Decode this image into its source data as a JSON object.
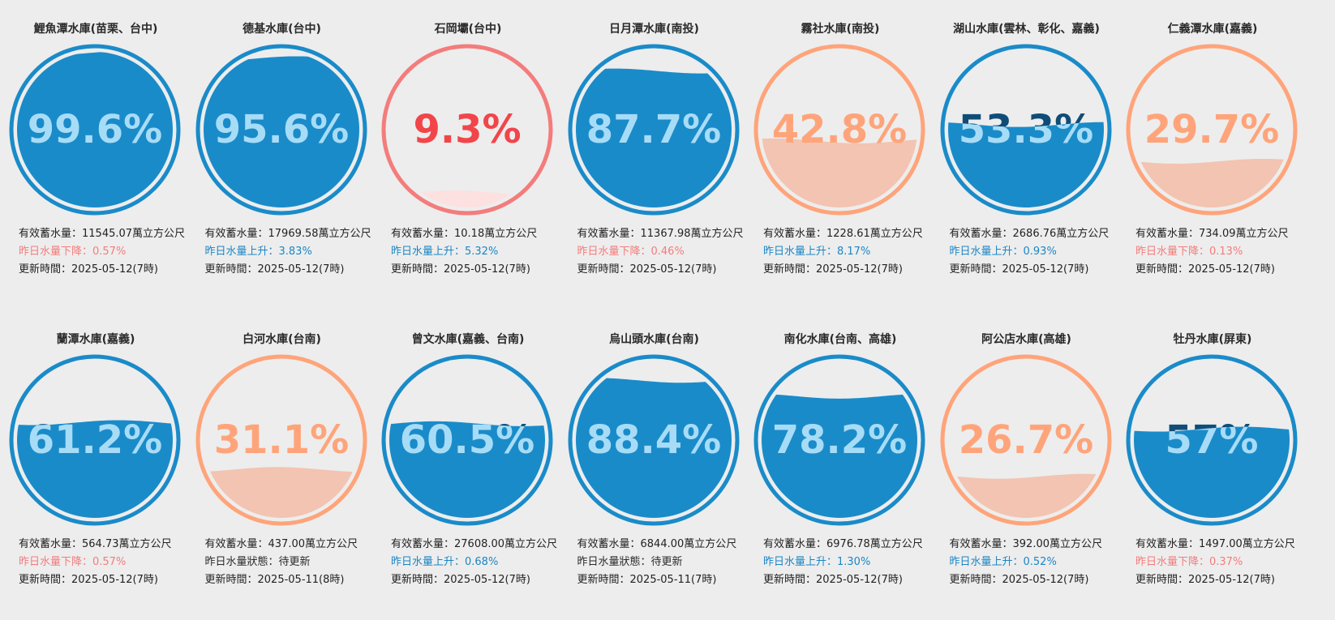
{
  "colors": {
    "blue": "#1a8bc9",
    "blue_text": "#a7dcf7",
    "blue_dark_text": "#0f4d78",
    "orange": "#ffa47a",
    "orange_fill": "#f2c4b1",
    "red": "#f47c7c",
    "red_text": "#f2454a",
    "red_fill": "#fde0e0",
    "trend_up": "#1b86c5",
    "trend_down": "#f47c7c"
  },
  "reservoirs": [
    {
      "name": "鯉魚潭水庫(苗栗、台中)",
      "percent": 99.6,
      "percent_label": "99.6%",
      "status": "blue",
      "capacity": "有效蓄水量：11545.07萬立方公尺",
      "trend": "昨日水量下降：0.57%",
      "trend_dir": "down",
      "updated": "更新時間：2025-05-12(7時)"
    },
    {
      "name": "德基水庫(台中)",
      "percent": 95.6,
      "percent_label": "95.6%",
      "status": "blue",
      "capacity": "有效蓄水量：17969.58萬立方公尺",
      "trend": "昨日水量上升：3.83%",
      "trend_dir": "up",
      "updated": "更新時間：2025-05-12(7時)"
    },
    {
      "name": "石岡壩(台中)",
      "percent": 9.3,
      "percent_label": "9.3%",
      "status": "red",
      "capacity": "有效蓄水量：10.18萬立方公尺",
      "trend": "昨日水量上升：5.32%",
      "trend_dir": "up",
      "updated": "更新時間：2025-05-12(7時)"
    },
    {
      "name": "日月潭水庫(南投)",
      "percent": 87.7,
      "percent_label": "87.7%",
      "status": "blue",
      "capacity": "有效蓄水量：11367.98萬立方公尺",
      "trend": "昨日水量下降：0.46%",
      "trend_dir": "down",
      "updated": "更新時間：2025-05-12(7時)"
    },
    {
      "name": "霧社水庫(南投)",
      "percent": 42.8,
      "percent_label": "42.8%",
      "status": "orange",
      "capacity": "有效蓄水量：1228.61萬立方公尺",
      "trend": "昨日水量上升：8.17%",
      "trend_dir": "up",
      "updated": "更新時間：2025-05-12(7時)"
    },
    {
      "name": "湖山水庫(雲林、彰化、嘉義)",
      "percent": 53.3,
      "percent_label": "53.3%",
      "status": "blue",
      "capacity": "有效蓄水量：2686.76萬立方公尺",
      "trend": "昨日水量上升：0.93%",
      "trend_dir": "up",
      "updated": "更新時間：2025-05-12(7時)"
    },
    {
      "name": "仁義潭水庫(嘉義)",
      "percent": 29.7,
      "percent_label": "29.7%",
      "status": "orange",
      "capacity": "有效蓄水量：734.09萬立方公尺",
      "trend": "昨日水量下降：0.13%",
      "trend_dir": "down",
      "updated": "更新時間：2025-05-12(7時)"
    },
    {
      "name": "蘭潭水庫(嘉義)",
      "percent": 61.2,
      "percent_label": "61.2%",
      "status": "blue",
      "capacity": "有效蓄水量：564.73萬立方公尺",
      "trend": "昨日水量下降：0.57%",
      "trend_dir": "down",
      "updated": "更新時間：2025-05-12(7時)"
    },
    {
      "name": "白河水庫(台南)",
      "percent": 31.1,
      "percent_label": "31.1%",
      "status": "orange",
      "capacity": "有效蓄水量：437.00萬立方公尺",
      "trend": "昨日水量狀態：待更新",
      "trend_dir": "none",
      "updated": "更新時間：2025-05-11(8時)"
    },
    {
      "name": "曾文水庫(嘉義、台南)",
      "percent": 60.5,
      "percent_label": "60.5%",
      "status": "blue",
      "capacity": "有效蓄水量：27608.00萬立方公尺",
      "trend": "昨日水量上升：0.68%",
      "trend_dir": "up",
      "updated": "更新時間：2025-05-12(7時)"
    },
    {
      "name": "烏山頭水庫(台南)",
      "percent": 88.4,
      "percent_label": "88.4%",
      "status": "blue",
      "capacity": "有效蓄水量：6844.00萬立方公尺",
      "trend": "昨日水量狀態：待更新",
      "trend_dir": "none",
      "updated": "更新時間：2025-05-11(7時)"
    },
    {
      "name": "南化水庫(台南、高雄)",
      "percent": 78.2,
      "percent_label": "78.2%",
      "status": "blue",
      "capacity": "有效蓄水量：6976.78萬立方公尺",
      "trend": "昨日水量上升：1.30%",
      "trend_dir": "up",
      "updated": "更新時間：2025-05-12(7時)"
    },
    {
      "name": "阿公店水庫(高雄)",
      "percent": 26.7,
      "percent_label": "26.7%",
      "status": "orange",
      "capacity": "有效蓄水量：392.00萬立方公尺",
      "trend": "昨日水量上升：0.52%",
      "trend_dir": "up",
      "updated": "更新時間：2025-05-12(7時)"
    },
    {
      "name": "牡丹水庫(屏東)",
      "percent": 57,
      "percent_label": "57%",
      "status": "blue",
      "capacity": "有效蓄水量：1497.00萬立方公尺",
      "trend": "昨日水量下降：0.37%",
      "trend_dir": "down",
      "updated": "更新時間：2025-05-12(7時)"
    }
  ]
}
